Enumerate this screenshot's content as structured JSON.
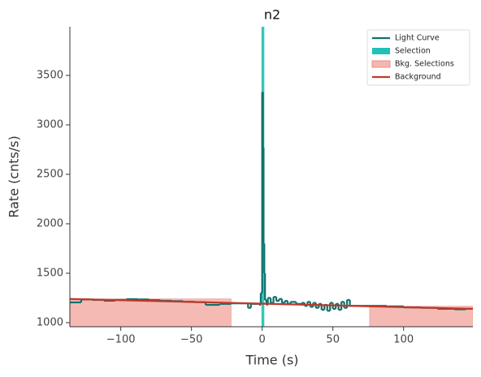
{
  "chart_data": {
    "type": "lightcurve",
    "title": "n2",
    "x_label": "Time (s)",
    "y_label": "Rate (cnts/s)",
    "xlim": [
      -136,
      149
    ],
    "ylim": [
      959,
      3992
    ],
    "xticks": [
      {
        "value": -100,
        "label": "−100"
      },
      {
        "value": -50,
        "label": "−50"
      },
      0,
      50,
      100
    ],
    "yticks": [
      1000,
      1500,
      2000,
      2500,
      3000,
      3500
    ],
    "legend_position": "upper right",
    "series": [
      {
        "name": "Light Curve",
        "color": "#0e716c",
        "x": [
          -136,
          -128,
          -120,
          -112,
          -104,
          -96,
          -88,
          -80,
          -72,
          -64,
          -56,
          -48,
          -40,
          -30,
          -22,
          -10,
          -8,
          -2,
          -1,
          0,
          0.5,
          1,
          1.5,
          2,
          3,
          4,
          6,
          8,
          10,
          12,
          14,
          16,
          18,
          20,
          24,
          28,
          30,
          32,
          34,
          36,
          38,
          40,
          42,
          44,
          46,
          48,
          50,
          52,
          54,
          56,
          58,
          60,
          62,
          76,
          88,
          100,
          112,
          124,
          136,
          144
        ],
        "values": [
          1205,
          1235,
          1230,
          1222,
          1230,
          1238,
          1235,
          1228,
          1222,
          1218,
          1212,
          1208,
          1180,
          1190,
          1195,
          1150,
          1190,
          1180,
          1300,
          3330,
          2770,
          1800,
          1500,
          1230,
          1180,
          1250,
          1200,
          1260,
          1220,
          1240,
          1200,
          1220,
          1190,
          1210,
          1190,
          1200,
          1170,
          1210,
          1160,
          1200,
          1150,
          1190,
          1130,
          1180,
          1120,
          1200,
          1140,
          1190,
          1130,
          1210,
          1150,
          1230,
          1170,
          1170,
          1165,
          1155,
          1150,
          1140,
          1135,
          1140
        ]
      },
      {
        "name": "Selection",
        "color": "#1fc2b4",
        "ranges": [
          [
            -0.5,
            1.5
          ]
        ]
      },
      {
        "name": "Bkg. Selections",
        "color": "#f4b6b0",
        "ranges": [
          [
            -136,
            -22
          ],
          [
            76,
            149
          ]
        ]
      },
      {
        "name": "Background",
        "color": "#c0392b",
        "x": [
          -136,
          149
        ],
        "values": [
          1240,
          1140
        ]
      }
    ]
  }
}
